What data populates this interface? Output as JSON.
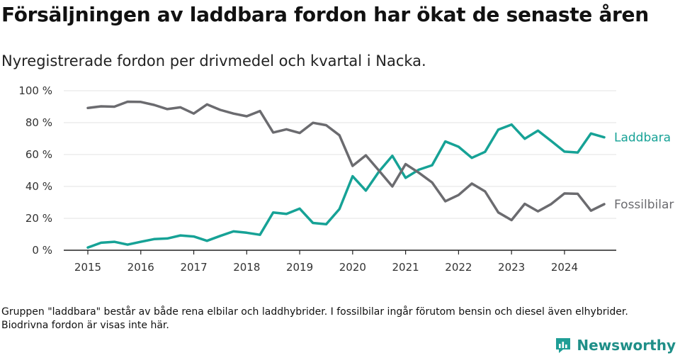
{
  "title": "Försäljningen av laddbara fordon har ökat de senaste åren",
  "subtitle": "Nyregistrerade fordon per drivmedel och kvartal i Nacka.",
  "note": "Gruppen \"laddbara\" består av både rena elbilar och laddhybrider. I fossilbilar ingår förutom bensin och diesel även elhybrider. Biodrivna fordon är visas inte här.",
  "brand": {
    "name": "Newsworthy",
    "icon": "bar-chart-logo-icon",
    "color": "#1f9e96"
  },
  "chart_data": {
    "type": "line",
    "ylim": [
      0,
      100
    ],
    "yticks": [
      0,
      20,
      40,
      60,
      80,
      100
    ],
    "ytick_labels": [
      "0 %",
      "20 %",
      "40 %",
      "60 %",
      "80 %",
      "100 %"
    ],
    "xlim": [
      2015,
      2025.0
    ],
    "xticks": [
      2015,
      2016,
      2017,
      2018,
      2019,
      2020,
      2021,
      2022,
      2023,
      2024
    ],
    "xtick_labels": [
      "2015",
      "2016",
      "2017",
      "2018",
      "2019",
      "2020",
      "2021",
      "2022",
      "2023",
      "2024"
    ],
    "grid": true,
    "x": [
      2015.0,
      2015.25,
      2015.5,
      2015.75,
      2016.0,
      2016.25,
      2016.5,
      2016.75,
      2017.0,
      2017.25,
      2017.5,
      2017.75,
      2018.0,
      2018.25,
      2018.5,
      2018.75,
      2019.0,
      2019.25,
      2019.5,
      2019.75,
      2020.0,
      2020.25,
      2020.5,
      2020.75,
      2021.0,
      2021.25,
      2021.5,
      2021.75,
      2022.0,
      2022.25,
      2022.5,
      2022.75,
      2023.0,
      2023.25,
      2023.5,
      2023.75,
      2024.0,
      2024.25,
      2024.5,
      2024.75
    ],
    "series": [
      {
        "name": "Laddbara",
        "color": "#16a296",
        "values": [
          1.7,
          4.7,
          5.3,
          3.5,
          5.3,
          7.0,
          7.4,
          9.3,
          8.6,
          5.9,
          9.0,
          11.8,
          11.0,
          9.7,
          23.7,
          22.8,
          26.1,
          17.1,
          16.3,
          25.8,
          46.4,
          37.4,
          49.4,
          59.2,
          45.4,
          50.5,
          53.3,
          68.2,
          64.9,
          57.9,
          61.7,
          75.6,
          78.8,
          69.9,
          75.0,
          68.5,
          61.8,
          61.3,
          73.2,
          70.8
        ]
      },
      {
        "name": "Fossilbilar",
        "color": "#6b6b6f",
        "values": [
          89.2,
          90.2,
          90.0,
          93.1,
          93.0,
          91.1,
          88.5,
          89.6,
          85.7,
          91.4,
          88.0,
          85.7,
          84.0,
          87.3,
          73.8,
          75.8,
          73.5,
          79.9,
          78.4,
          72.1,
          52.9,
          59.5,
          49.8,
          40.0,
          54.0,
          48.6,
          42.5,
          30.7,
          34.6,
          41.8,
          36.9,
          23.7,
          18.9,
          29.1,
          24.4,
          29.0,
          35.6,
          35.4,
          24.8,
          28.9
        ]
      }
    ]
  }
}
